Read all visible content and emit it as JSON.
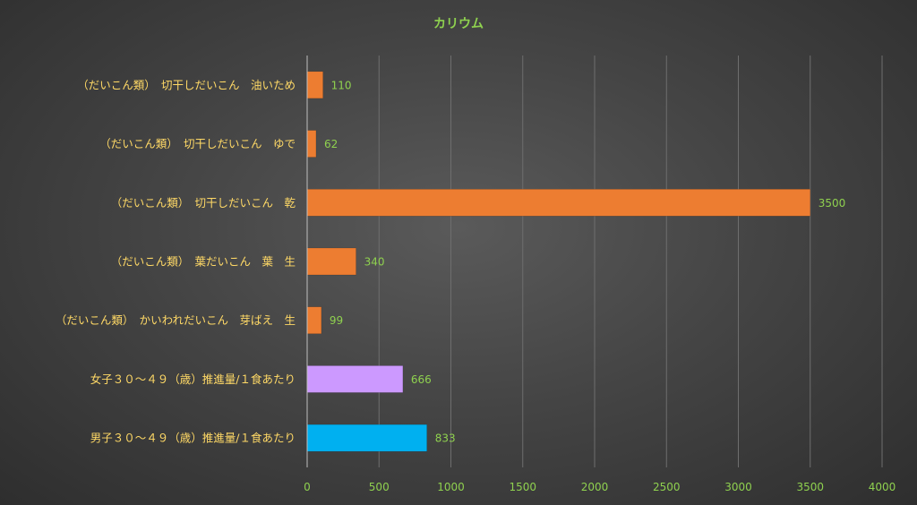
{
  "chart_data": {
    "type": "bar",
    "orientation": "horizontal",
    "title": "カリウム",
    "categories": [
      "（だいこん類）　切干しだいこん　油いため",
      "（だいこん類）　切干しだいこん　ゆで",
      "（だいこん類）　切干しだいこん　乾",
      "（だいこん類）　葉だいこん　葉　生",
      "（だいこん類）　かいわれだいこん　芽ばえ　生",
      "女子３０～４９（歳）推進量/１食あたり",
      "男子３０～４９（歳）推進量/１食あたり"
    ],
    "values": [
      110,
      62,
      3500,
      340,
      99,
      666,
      833
    ],
    "bar_colors": [
      "#ed7d31",
      "#ed7d31",
      "#ed7d31",
      "#ed7d31",
      "#ed7d31",
      "#cc99ff",
      "#00b0f0"
    ],
    "xlim": [
      0,
      4000
    ],
    "xticks": [
      0,
      500,
      1000,
      1500,
      2000,
      2500,
      3000,
      3500,
      4000
    ],
    "grid": true,
    "legend": "none",
    "data_labels": true
  }
}
